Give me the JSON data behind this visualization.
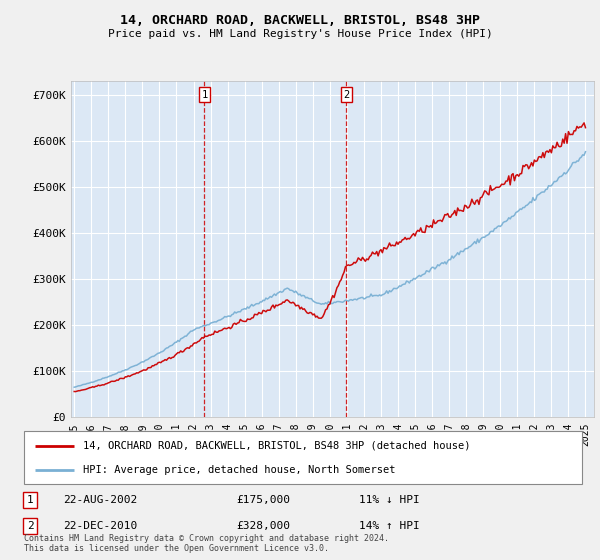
{
  "title": "14, ORCHARD ROAD, BACKWELL, BRISTOL, BS48 3HP",
  "subtitle": "Price paid vs. HM Land Registry's House Price Index (HPI)",
  "ylabel_ticks": [
    "£0",
    "£100K",
    "£200K",
    "£300K",
    "£400K",
    "£500K",
    "£600K",
    "£700K"
  ],
  "ytick_values": [
    0,
    100000,
    200000,
    300000,
    400000,
    500000,
    600000,
    700000
  ],
  "ylim": [
    0,
    730000
  ],
  "xlim_start": 1994.8,
  "xlim_end": 2025.5,
  "fig_bg_color": "#f0f0f0",
  "plot_bg_color": "#dce8f5",
  "grid_color": "#ffffff",
  "red_line_color": "#cc0000",
  "blue_line_color": "#7ab0d4",
  "vline_color": "#cc0000",
  "legend_label_red": "14, ORCHARD ROAD, BACKWELL, BRISTOL, BS48 3HP (detached house)",
  "legend_label_blue": "HPI: Average price, detached house, North Somerset",
  "transaction1_date": "22-AUG-2002",
  "transaction1_price": "£175,000",
  "transaction1_hpi": "11% ↓ HPI",
  "transaction1_year": 2002.64,
  "transaction2_date": "22-DEC-2010",
  "transaction2_price": "£328,000",
  "transaction2_hpi": "14% ↑ HPI",
  "transaction2_year": 2010.97,
  "footer": "Contains HM Land Registry data © Crown copyright and database right 2024.\nThis data is licensed under the Open Government Licence v3.0.",
  "xtick_years": [
    1995,
    1996,
    1997,
    1998,
    1999,
    2000,
    2001,
    2002,
    2003,
    2004,
    2005,
    2006,
    2007,
    2008,
    2009,
    2010,
    2011,
    2012,
    2013,
    2014,
    2015,
    2016,
    2017,
    2018,
    2019,
    2020,
    2021,
    2022,
    2023,
    2024,
    2025
  ]
}
